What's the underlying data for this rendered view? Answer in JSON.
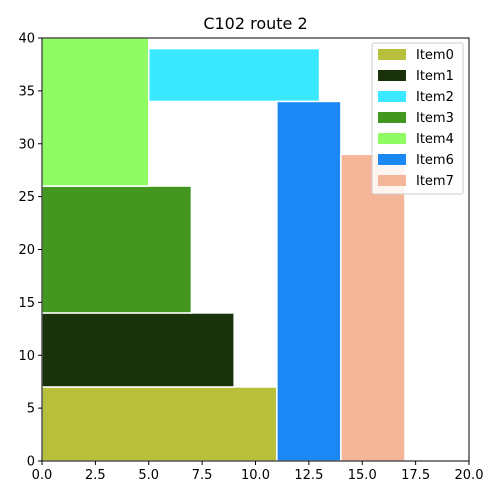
{
  "chart_data": {
    "type": "bar",
    "orientation": "rectangles",
    "title": "C102 route 2",
    "xlabel": "",
    "ylabel": "",
    "xlim": [
      0,
      20
    ],
    "ylim": [
      0,
      40
    ],
    "xticks": [
      "0.0",
      "2.5",
      "5.0",
      "7.5",
      "10.0",
      "12.5",
      "15.0",
      "17.5",
      "20.0"
    ],
    "yticks": [
      "0",
      "5",
      "10",
      "15",
      "20",
      "25",
      "30",
      "35",
      "40"
    ],
    "grid": false,
    "legend_position": "top-right",
    "series": [
      {
        "name": "Item0",
        "color": "#b8bf3a",
        "x": [
          0,
          11
        ],
        "y": [
          0,
          7
        ]
      },
      {
        "name": "Item1",
        "color": "#1a3209",
        "x": [
          0,
          9
        ],
        "y": [
          7,
          14
        ]
      },
      {
        "name": "Item2",
        "color": "#3ae8ff",
        "x": [
          5,
          13
        ],
        "y": [
          34,
          39
        ]
      },
      {
        "name": "Item3",
        "color": "#439720",
        "x": [
          0,
          7
        ],
        "y": [
          14,
          26
        ]
      },
      {
        "name": "Item4",
        "color": "#8ffc64",
        "x": [
          0,
          5
        ],
        "y": [
          26,
          40
        ]
      },
      {
        "name": "Item6",
        "color": "#1b88f5",
        "x": [
          11,
          14
        ],
        "y": [
          0,
          34
        ]
      },
      {
        "name": "Item7",
        "color": "#f5b598",
        "x": [
          14,
          17
        ],
        "y": [
          0,
          29
        ]
      }
    ]
  }
}
